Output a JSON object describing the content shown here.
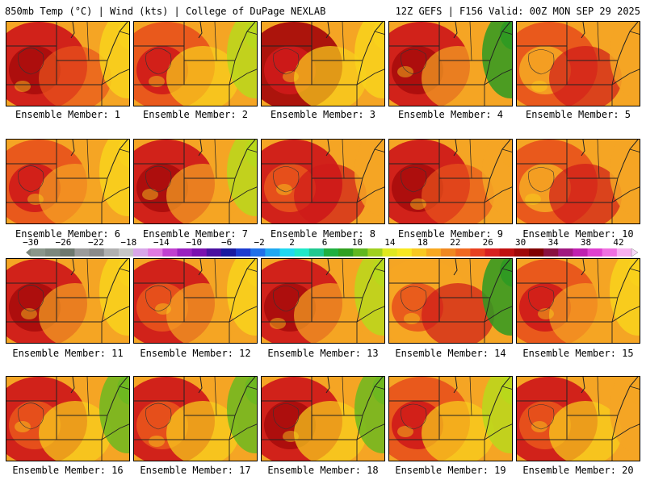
{
  "header": {
    "left": "850mb Temp (°C) | Wind (kts) | College of DuPage NEXLAB",
    "right": "12Z GEFS | F156 Valid: 00Z MON SEP 29 2025"
  },
  "colorbar": {
    "labels": [
      "−30",
      "−26",
      "−22",
      "−18",
      "−14",
      "−10",
      "−6",
      "−2",
      "2",
      "6",
      "10",
      "14",
      "18",
      "22",
      "26",
      "30",
      "34",
      "38",
      "42"
    ],
    "min": -30,
    "max": 42,
    "step": 2,
    "colors": [
      "#8a968a",
      "#7c877c",
      "#6e786e",
      "#9b9b9b",
      "#8a8a8a",
      "#b0b0b0",
      "#c6c6c6",
      "#d8a6e8",
      "#e07ae0",
      "#c040d0",
      "#9a20c0",
      "#7a10b0",
      "#4a10a0",
      "#1a1aa0",
      "#1c3cd0",
      "#2070e8",
      "#20a8f0",
      "#20d8f0",
      "#20e8c8",
      "#20c890",
      "#20b040",
      "#30a020",
      "#60b820",
      "#a0d020",
      "#e0e820",
      "#f8e820",
      "#f8c820",
      "#f8a820",
      "#f08820",
      "#f06820",
      "#e84020",
      "#d82020",
      "#c01010",
      "#a00808",
      "#800000",
      "#8a1040",
      "#a01880",
      "#c020b0",
      "#e040d0",
      "#f070e0",
      "#f8b0f0"
    ]
  },
  "panel_fill_colors": {
    "background": "#f5a524",
    "warm": "#e8541c",
    "hot": "#cf1a1a",
    "very_hot": "#a80c0c",
    "mild": "#f8d21c",
    "cool": "#b8d81c",
    "cooler": "#6cb820",
    "green": "#2e9a22"
  },
  "members": [
    {
      "label": "Ensemble Member: 1"
    },
    {
      "label": "Ensemble Member: 2"
    },
    {
      "label": "Ensemble Member: 3"
    },
    {
      "label": "Ensemble Member: 4"
    },
    {
      "label": "Ensemble Member: 5"
    },
    {
      "label": "Ensemble Member: 6"
    },
    {
      "label": "Ensemble Member: 7"
    },
    {
      "label": "Ensemble Member: 8"
    },
    {
      "label": "Ensemble Member: 9"
    },
    {
      "label": "Ensemble Member: 10"
    },
    {
      "label": "Ensemble Member: 11"
    },
    {
      "label": "Ensemble Member: 12"
    },
    {
      "label": "Ensemble Member: 13"
    },
    {
      "label": "Ensemble Member: 14"
    },
    {
      "label": "Ensemble Member: 15"
    },
    {
      "label": "Ensemble Member: 16"
    },
    {
      "label": "Ensemble Member: 17"
    },
    {
      "label": "Ensemble Member: 18"
    },
    {
      "label": "Ensemble Member: 19"
    },
    {
      "label": "Ensemble Member: 20"
    }
  ]
}
